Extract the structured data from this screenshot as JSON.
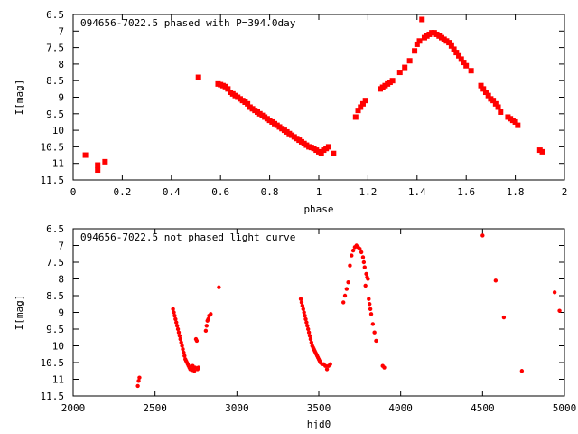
{
  "chart_data": [
    {
      "type": "scatter",
      "title": "094656-7022.5 phased with P=394.0day",
      "xlabel": "phase",
      "ylabel": "I[mag]",
      "xlim": [
        0,
        2
      ],
      "ylim": [
        6.5,
        11.5
      ],
      "y_inverted": true,
      "x_ticks": [
        "0",
        "0.2",
        "0.4",
        "0.6",
        "0.8",
        "1",
        "1.2",
        "1.4",
        "1.6",
        "1.8",
        "2"
      ],
      "y_ticks": [
        "6.5",
        "7",
        "7.5",
        "8",
        "8.5",
        "9",
        "9.5",
        "10",
        "10.5",
        "11",
        "11.5"
      ],
      "marker_color": "#ff0000",
      "series": [
        {
          "x": [
            0.05,
            0.1,
            0.1,
            0.13,
            0.51,
            0.59,
            0.6,
            0.61,
            0.62,
            0.63,
            0.64,
            0.65,
            0.66,
            0.67,
            0.68,
            0.69,
            0.7,
            0.71,
            0.72,
            0.73,
            0.74,
            0.75,
            0.76,
            0.77,
            0.78,
            0.79,
            0.8,
            0.81,
            0.82,
            0.83,
            0.84,
            0.85,
            0.86,
            0.87,
            0.88,
            0.89,
            0.9,
            0.91,
            0.92,
            0.93,
            0.94,
            0.95,
            0.96,
            0.97,
            0.98,
            0.99,
            1.0,
            1.01,
            1.02,
            1.03,
            1.04,
            1.06,
            1.15,
            1.16,
            1.17,
            1.18,
            1.19,
            1.25,
            1.26,
            1.27,
            1.28,
            1.29,
            1.3,
            1.33,
            1.35,
            1.37,
            1.39,
            1.4,
            1.41,
            1.42,
            1.43,
            1.44,
            1.45,
            1.46,
            1.47,
            1.48,
            1.49,
            1.5,
            1.51,
            1.52,
            1.53,
            1.54,
            1.55,
            1.56,
            1.57,
            1.58,
            1.59,
            1.6,
            1.62,
            1.66,
            1.67,
            1.68,
            1.69,
            1.7,
            1.71,
            1.72,
            1.73,
            1.74,
            1.77,
            1.78,
            1.79,
            1.8,
            1.81,
            1.9,
            1.91
          ],
          "y": [
            10.75,
            11.2,
            11.05,
            10.95,
            8.4,
            8.6,
            8.62,
            8.65,
            8.68,
            8.75,
            8.85,
            8.9,
            8.95,
            9.0,
            9.05,
            9.1,
            9.15,
            9.2,
            9.3,
            9.35,
            9.4,
            9.45,
            9.5,
            9.55,
            9.6,
            9.65,
            9.7,
            9.75,
            9.8,
            9.85,
            9.9,
            9.95,
            10.0,
            10.05,
            10.1,
            10.15,
            10.2,
            10.25,
            10.3,
            10.35,
            10.4,
            10.45,
            10.5,
            10.52,
            10.55,
            10.6,
            10.65,
            10.7,
            10.6,
            10.55,
            10.5,
            10.7,
            9.6,
            9.4,
            9.3,
            9.2,
            9.1,
            8.75,
            8.7,
            8.65,
            8.6,
            8.55,
            8.5,
            8.25,
            8.1,
            7.9,
            7.6,
            7.4,
            7.3,
            6.65,
            7.2,
            7.15,
            7.1,
            7.05,
            7.05,
            7.1,
            7.15,
            7.2,
            7.25,
            7.3,
            7.35,
            7.45,
            7.55,
            7.65,
            7.75,
            7.85,
            7.95,
            8.05,
            8.2,
            8.65,
            8.75,
            8.85,
            8.95,
            9.05,
            9.1,
            9.2,
            9.3,
            9.45,
            9.6,
            9.65,
            9.7,
            9.75,
            9.85,
            10.6,
            10.65
          ]
        }
      ]
    },
    {
      "type": "scatter",
      "title": "094656-7022.5 not phased light curve",
      "xlabel": "hjd0",
      "ylabel": "I[mag]",
      "xlim": [
        2000,
        5000
      ],
      "ylim": [
        6.5,
        11.5
      ],
      "y_inverted": true,
      "x_ticks": [
        "2000",
        "2500",
        "3000",
        "3500",
        "4000",
        "4500",
        "5000"
      ],
      "y_ticks": [
        "6.5",
        "7",
        "7.5",
        "8",
        "8.5",
        "9",
        "9.5",
        "10",
        "10.5",
        "11",
        "11.5"
      ],
      "marker_color": "#ff0000",
      "series": [
        {
          "x": [
            2395,
            2400,
            2405,
            2610,
            2615,
            2620,
            2625,
            2630,
            2635,
            2640,
            2645,
            2650,
            2655,
            2660,
            2665,
            2670,
            2675,
            2680,
            2685,
            2690,
            2695,
            2700,
            2705,
            2710,
            2715,
            2720,
            2725,
            2730,
            2735,
            2740,
            2745,
            2750,
            2755,
            2760,
            2765,
            2810,
            2815,
            2820,
            2825,
            2830,
            2840,
            2890,
            3390,
            3395,
            3400,
            3405,
            3410,
            3415,
            3420,
            3425,
            3430,
            3435,
            3440,
            3445,
            3450,
            3455,
            3460,
            3465,
            3470,
            3475,
            3480,
            3485,
            3490,
            3495,
            3500,
            3505,
            3510,
            3520,
            3530,
            3540,
            3550,
            3560,
            3570,
            3650,
            3660,
            3670,
            3680,
            3690,
            3700,
            3710,
            3720,
            3730,
            3740,
            3750,
            3760,
            3770,
            3775,
            3780,
            3785,
            3790,
            3795,
            3800,
            3805,
            3810,
            3815,
            3820,
            3830,
            3840,
            3850,
            3890,
            3900,
            4500,
            4580,
            4630,
            4740,
            4940,
            4970
          ],
          "y": [
            11.2,
            11.05,
            10.95,
            8.9,
            9.0,
            9.1,
            9.2,
            9.3,
            9.4,
            9.5,
            9.6,
            9.7,
            9.8,
            9.9,
            10.0,
            10.1,
            10.2,
            10.3,
            10.4,
            10.45,
            10.5,
            10.55,
            10.6,
            10.65,
            10.7,
            10.7,
            10.72,
            10.6,
            10.7,
            10.75,
            10.65,
            9.8,
            9.85,
            10.7,
            10.65,
            9.55,
            9.4,
            9.25,
            9.2,
            9.1,
            9.05,
            8.25,
            8.6,
            8.7,
            8.8,
            8.9,
            9.0,
            9.1,
            9.2,
            9.3,
            9.4,
            9.5,
            9.6,
            9.7,
            9.8,
            9.9,
            10.0,
            10.05,
            10.1,
            10.15,
            10.2,
            10.25,
            10.3,
            10.35,
            10.4,
            10.45,
            10.5,
            10.55,
            10.55,
            10.6,
            10.7,
            10.6,
            10.55,
            8.7,
            8.5,
            8.3,
            8.1,
            7.6,
            7.3,
            7.15,
            7.05,
            7.0,
            7.05,
            7.1,
            7.2,
            7.35,
            7.5,
            7.65,
            8.2,
            7.85,
            7.95,
            8.0,
            8.6,
            8.75,
            8.9,
            9.05,
            9.35,
            9.6,
            9.85,
            10.6,
            10.65,
            6.7,
            8.05,
            9.15,
            10.75,
            8.4,
            8.95
          ]
        }
      ]
    }
  ]
}
